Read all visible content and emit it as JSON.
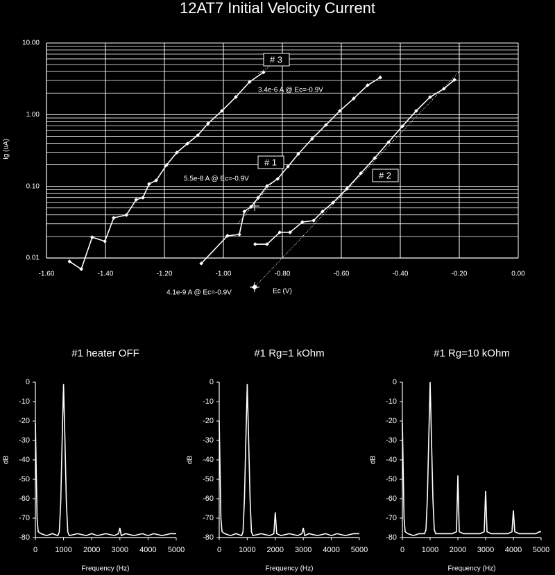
{
  "chart_data": [
    {
      "type": "line",
      "title": "12AT7 Initial Velocity Current",
      "xlabel": "Ec (V)",
      "ylabel": "Ig (uA)",
      "log_y": true,
      "grid": true,
      "minor_grid": true,
      "markers": true,
      "xlim": [
        -1.6,
        0
      ],
      "ylim": [
        0.01,
        10
      ],
      "xticks": [
        {
          "value": -1.6,
          "label": "-1.60"
        },
        {
          "value": -1.4,
          "label": "-1.40"
        },
        {
          "value": -1.2,
          "label": "-1.20"
        },
        {
          "value": -1.0,
          "label": "-1.00"
        },
        {
          "value": -0.8,
          "label": "-0.80"
        },
        {
          "value": -0.6,
          "label": "-0.60"
        },
        {
          "value": -0.4,
          "label": "-0.40"
        },
        {
          "value": -0.2,
          "label": "-0.20"
        },
        {
          "value": 0,
          "label": "0.00"
        }
      ],
      "yticks": [
        0.01,
        {
          "value": 0.1,
          "label": "0.10"
        },
        {
          "value": 1,
          "label": "1.00"
        },
        {
          "value": 10,
          "label": "10.00"
        }
      ],
      "series": [
        {
          "name": "# 1",
          "color": "#ffffff",
          "x": [
            -1.075,
            -0.986,
            -0.946,
            -0.929,
            -0.906,
            -0.882,
            -0.852,
            -0.816,
            -0.781,
            -0.746,
            -0.699,
            -0.652,
            -0.605,
            -0.558,
            -0.511,
            -0.468
          ],
          "values": [
            0.0084,
            0.0204,
            0.0213,
            0.0445,
            0.052,
            0.0695,
            0.101,
            0.127,
            0.189,
            0.283,
            0.462,
            0.72,
            1.13,
            1.68,
            2.57,
            3.3
          ]
        },
        {
          "name": "# 2",
          "color": "#ffffff",
          "x": [
            -0.892,
            -0.852,
            -0.809,
            -0.774,
            -0.732,
            -0.694,
            -0.664,
            -0.628,
            -0.581,
            -0.534,
            -0.487,
            -0.44,
            -0.393,
            -0.346,
            -0.299,
            -0.252,
            -0.216
          ],
          "values": [
            0.0156,
            0.0156,
            0.0228,
            0.0228,
            0.0318,
            0.0333,
            0.0445,
            0.0594,
            0.093,
            0.152,
            0.248,
            0.413,
            0.69,
            1.13,
            1.76,
            2.3,
            3.07
          ]
        },
        {
          "name": "# 3",
          "color": "#ffffff",
          "x": [
            -1.522,
            -1.482,
            -1.445,
            -1.402,
            -1.372,
            -1.329,
            -1.296,
            -1.273,
            -1.252,
            -1.228,
            -1.193,
            -1.158,
            -1.122,
            -1.087,
            -1.052,
            -1.005,
            -0.958,
            -0.911,
            -0.864
          ],
          "values": [
            0.00895,
            0.007,
            0.0195,
            0.0171,
            0.0364,
            0.0398,
            0.065,
            0.0695,
            0.108,
            0.121,
            0.198,
            0.296,
            0.395,
            0.516,
            0.754,
            1.13,
            1.76,
            2.87,
            3.9
          ]
        }
      ],
      "annotations": [
        "3.4e-6 A @ Ec=-0.9V",
        "5.5e-8 A @ Ec=-0.9V",
        "4.1e-9 A @ Ec=-0.9V"
      ]
    },
    {
      "type": "line",
      "title": "#1  heater OFF",
      "xlabel": "Frequency (Hz)",
      "ylabel": "dB",
      "color": "#ffffff",
      "xlim": [
        0,
        5000
      ],
      "ylim": [
        -80,
        0
      ],
      "xticks": [
        0,
        1000,
        2000,
        3000,
        4000,
        5000
      ],
      "yticks": [
        0,
        -10,
        -20,
        -30,
        -40,
        -50,
        -60,
        -70,
        -80
      ],
      "x": [
        0,
        30,
        60,
        100,
        200,
        400,
        600,
        800,
        850,
        900,
        950,
        1000,
        1050,
        1100,
        1150,
        1200,
        1500,
        1800,
        2000,
        2200,
        2500,
        2800,
        2950,
        3000,
        3050,
        3200,
        3500,
        3800,
        4000,
        4200,
        4500,
        4800,
        5000
      ],
      "values": [
        -21,
        -45,
        -70,
        -77,
        -78,
        -79,
        -78,
        -79,
        -77,
        -62,
        -30,
        -1,
        -30,
        -62,
        -77,
        -79,
        -78,
        -79,
        -78,
        -79,
        -78,
        -79,
        -78,
        -75,
        -79,
        -78,
        -79,
        -78,
        -79,
        -78,
        -79,
        -78,
        -78
      ]
    },
    {
      "type": "line",
      "title": "#1   Rg=1 kOhm",
      "xlabel": "Frequency (Hz)",
      "ylabel": "dB",
      "color": "#ffffff",
      "xlim": [
        0,
        5000
      ],
      "ylim": [
        -80,
        0
      ],
      "xticks": [
        0,
        1000,
        2000,
        3000,
        4000,
        5000
      ],
      "yticks": [
        0,
        -10,
        -20,
        -30,
        -40,
        -50,
        -60,
        -70,
        -80
      ],
      "x": [
        0,
        30,
        60,
        100,
        200,
        400,
        600,
        800,
        850,
        900,
        950,
        1000,
        1050,
        1100,
        1150,
        1200,
        1500,
        1800,
        1950,
        2000,
        2050,
        2200,
        2500,
        2800,
        2950,
        3000,
        3050,
        3200,
        3500,
        3800,
        4000,
        4200,
        4500,
        4800,
        5000
      ],
      "values": [
        -20,
        -45,
        -70,
        -77,
        -78,
        -79,
        -78,
        -79,
        -77,
        -60,
        -30,
        -1,
        -30,
        -60,
        -77,
        -79,
        -78,
        -79,
        -78,
        -67,
        -78,
        -79,
        -78,
        -79,
        -78,
        -75,
        -79,
        -78,
        -79,
        -78,
        -79,
        -78,
        -79,
        -78,
        -78
      ]
    },
    {
      "type": "line",
      "title": "#1   Rg=10 kOhm",
      "xlabel": "Frequency (Hz)",
      "ylabel": "dB",
      "color": "#ffffff",
      "xlim": [
        0,
        5000
      ],
      "ylim": [
        -80,
        0
      ],
      "xticks": [
        0,
        1000,
        2000,
        3000,
        4000,
        5000
      ],
      "yticks": [
        0,
        -10,
        -20,
        -30,
        -40,
        -50,
        -60,
        -70,
        -80
      ],
      "x": [
        0,
        30,
        60,
        100,
        200,
        400,
        600,
        800,
        850,
        900,
        950,
        1000,
        1050,
        1100,
        1150,
        1200,
        1500,
        1800,
        1950,
        2000,
        2050,
        2200,
        2500,
        2800,
        2950,
        3000,
        3050,
        3200,
        3500,
        3800,
        3950,
        4000,
        4050,
        4200,
        4500,
        4800,
        4950,
        5000
      ],
      "values": [
        -21,
        -45,
        -70,
        -77,
        -78,
        -79,
        -78,
        -78,
        -76,
        -60,
        -30,
        0,
        -30,
        -60,
        -76,
        -78,
        -78,
        -78,
        -77,
        -48,
        -77,
        -78,
        -78,
        -78,
        -77,
        -56,
        -77,
        -78,
        -78,
        -78,
        -77,
        -66,
        -77,
        -78,
        -78,
        -78,
        -77,
        -77
      ]
    }
  ]
}
